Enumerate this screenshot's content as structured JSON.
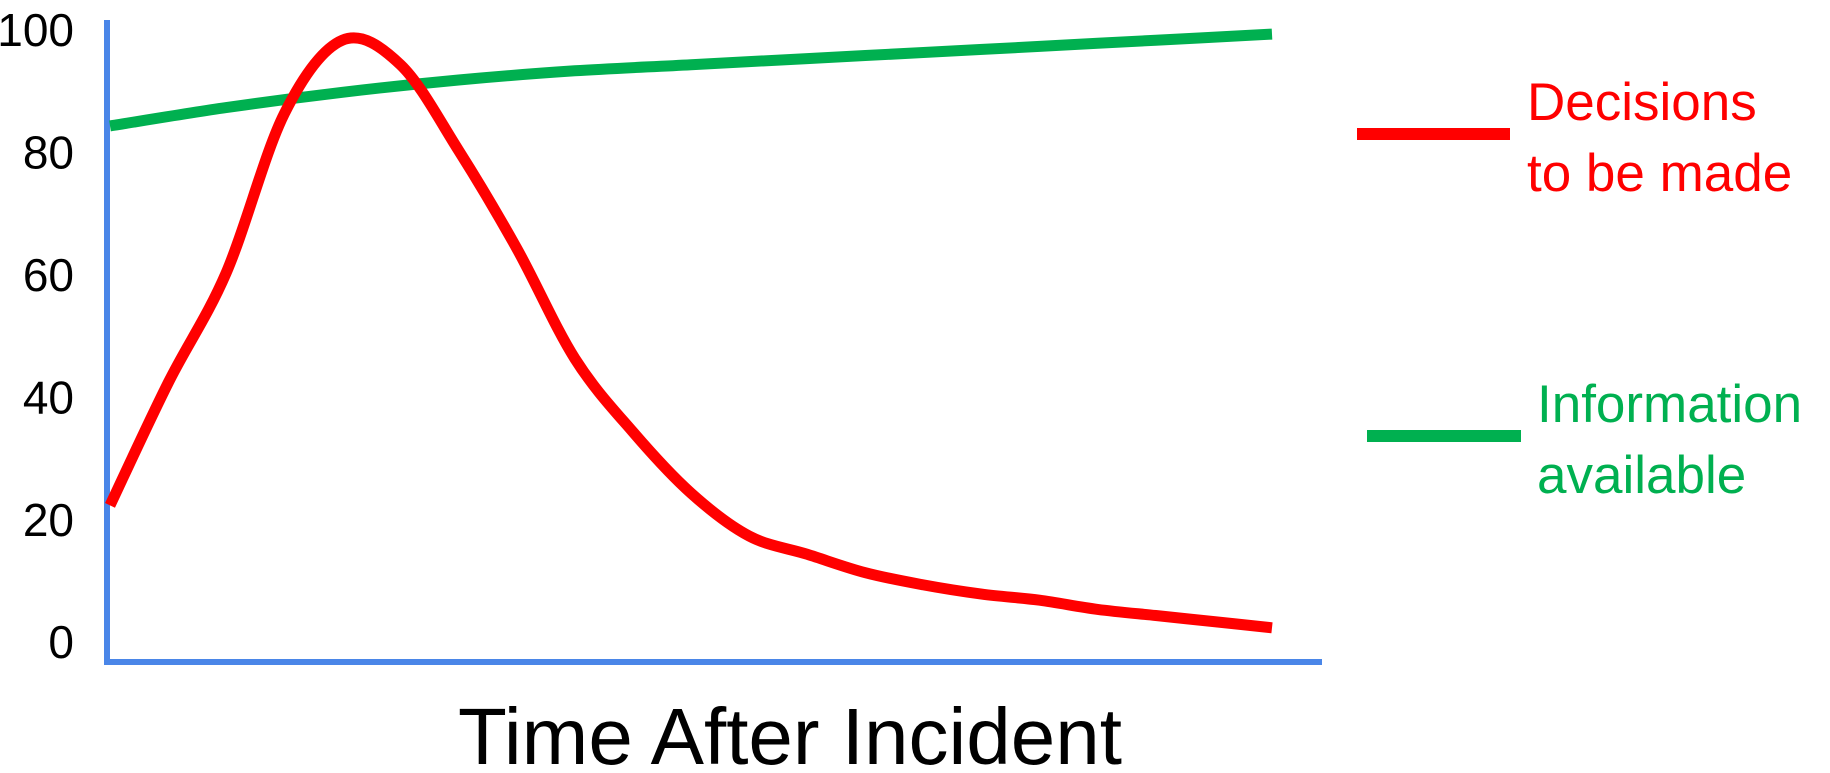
{
  "chart_data": {
    "type": "line",
    "title": "",
    "xlabel": "Time After Incident",
    "ylabel": "",
    "ylim": [
      0,
      100
    ],
    "y_ticks": [
      "0",
      "20",
      "40",
      "60",
      "80",
      "100"
    ],
    "x_ticks_shown": false,
    "grid": false,
    "legend_position": "right",
    "axis_color": "#4a86e8",
    "series": [
      {
        "name": "Decisions to be made",
        "legend_lines": [
          "Decisions",
          "to be made"
        ],
        "color": "#ff0000",
        "x": [
          0,
          0.5,
          1,
          1.5,
          2,
          2.5,
          3,
          3.5,
          4,
          4.5,
          5,
          5.5,
          6,
          6.5,
          7,
          7.5,
          8,
          8.5,
          9,
          9.5,
          10
        ],
        "values": [
          22,
          42,
          60,
          86,
          98,
          94,
          80,
          64,
          46,
          34,
          24,
          17,
          14,
          11,
          9,
          7.5,
          6.5,
          5,
          4,
          3,
          2
        ]
      },
      {
        "name": "Information available",
        "legend_lines": [
          "Information",
          "available"
        ],
        "color": "#00b050",
        "x": [
          0,
          1,
          2,
          3,
          4,
          5,
          6,
          7,
          8,
          9,
          10
        ],
        "values": [
          84,
          87,
          89.5,
          91.5,
          93,
          94,
          95,
          96,
          97,
          98,
          99
        ]
      }
    ]
  }
}
